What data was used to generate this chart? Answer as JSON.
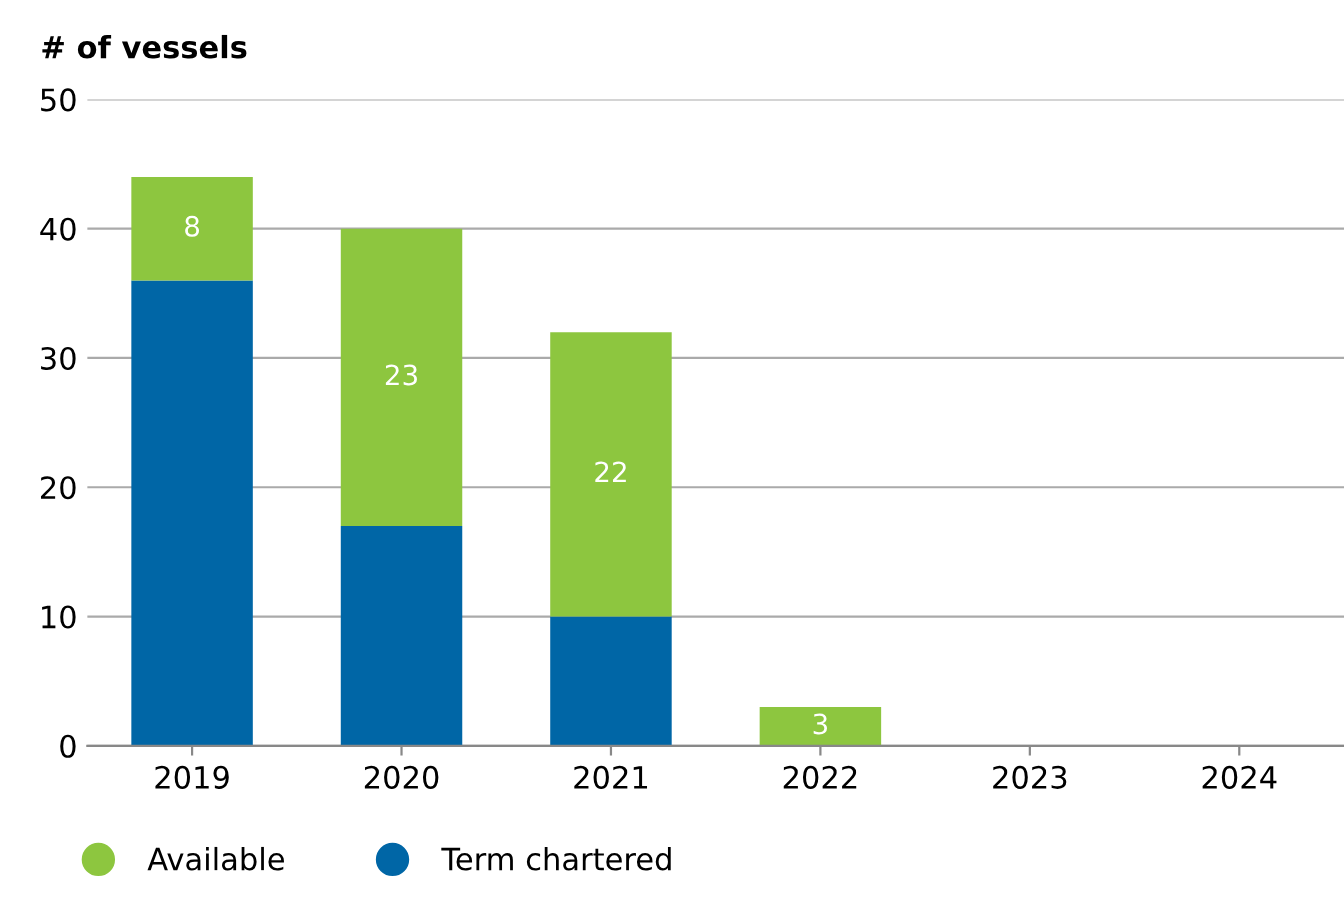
{
  "chart_data": {
    "type": "bar",
    "stacked": true,
    "ylabel": "# of vessels",
    "categories": [
      "2019",
      "2020",
      "2021",
      "2022",
      "2023",
      "2024"
    ],
    "series": [
      {
        "name": "Term chartered",
        "color": "#0066a6",
        "values": [
          36,
          17,
          10,
          0,
          0,
          0
        ]
      },
      {
        "name": "Available",
        "color": "#8dc63f",
        "values": [
          8,
          23,
          22,
          3,
          0,
          0
        ],
        "value_labels": [
          "8",
          "23",
          "22",
          "3",
          null,
          null
        ]
      }
    ],
    "ylim": [
      0,
      50
    ],
    "yticks": [
      0,
      10,
      20,
      30,
      40,
      50
    ],
    "grid": "y",
    "legend": "bottom left"
  }
}
